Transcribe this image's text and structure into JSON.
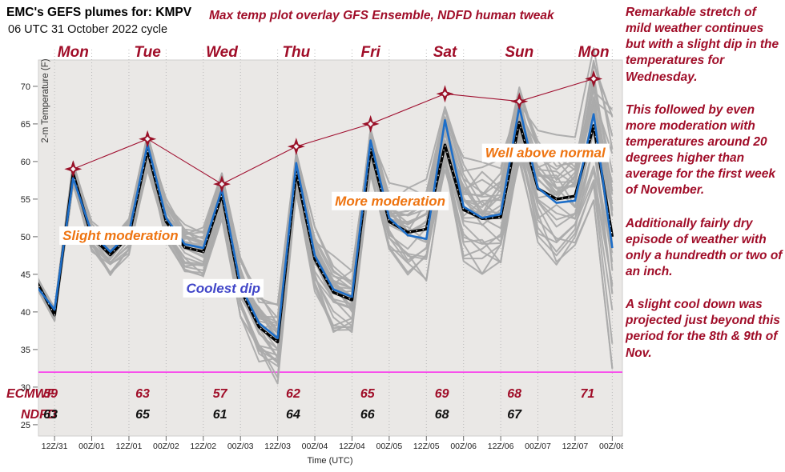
{
  "header": {
    "title": "EMC's GEFS plumes for: KMPV",
    "subtitle": "06 UTC 31 October 2022 cycle",
    "overlay_note": "Max temp plot overlay GFS Ensemble, NDFD human tweak"
  },
  "commentary": {
    "paragraphs": [
      "Remarkable stretch of mild weather continues but with a slight dip in the temperatures for Wednesday.",
      "This followed by even more moderation with temperatures around 20 degrees higher than average for the first week of November.",
      "Additionally fairly dry episode of weather with only a hundredth or two of an inch.",
      "A slight cool down was projected just beyond this period for the 8th & 9th of Nov."
    ]
  },
  "colors": {
    "accent_red": "#A00D28",
    "star_red": "#9A1128",
    "orange": "#EE7411",
    "annotation_blue": "#4146C8",
    "line_black": "#000000",
    "line_blue": "#1D6EC8",
    "ensemble_gray": "#ABABAB",
    "freezing_magenta": "#FF00EE",
    "plot_bg": "#EAE8E6"
  },
  "chart_data": {
    "type": "line",
    "title": "EMC's GEFS plumes for: KMPV",
    "xlabel": "Time (UTC)",
    "ylabel": "2-m Temperature (F)",
    "ylim": [
      23.5,
      73.5
    ],
    "yticks": [
      25,
      30,
      35,
      40,
      45,
      50,
      55,
      60,
      65,
      70
    ],
    "grid": "vertical-dotted",
    "freezing_line_f": 32,
    "x_hours": [
      0,
      6,
      12,
      18,
      24,
      30,
      36,
      42,
      48,
      54,
      60,
      66,
      72,
      78,
      84,
      90,
      96,
      102,
      108,
      114,
      120,
      126,
      132,
      138,
      144,
      150,
      156,
      162,
      168,
      174,
      180,
      186
    ],
    "x_tick_hours": [
      6,
      18,
      30,
      42,
      54,
      66,
      78,
      90,
      102,
      114,
      126,
      138,
      150,
      162,
      174,
      186
    ],
    "x_tick_labels": [
      "12Z/31",
      "00Z/01",
      "12Z/01",
      "00Z/02",
      "12Z/02",
      "00Z/03",
      "12Z/03",
      "00Z/04",
      "12Z/04",
      "00Z/05",
      "12Z/05",
      "00Z/06",
      "12Z/06",
      "00Z/07",
      "12Z/07",
      "00Z/08"
    ],
    "day_labels": [
      {
        "label": "Mon",
        "hour": 12
      },
      {
        "label": "Tue",
        "hour": 36
      },
      {
        "label": "Wed",
        "hour": 60
      },
      {
        "label": "Thu",
        "hour": 84
      },
      {
        "label": "Fri",
        "hour": 108
      },
      {
        "label": "Sat",
        "hour": 132
      },
      {
        "label": "Sun",
        "hour": 156
      },
      {
        "label": "Mon",
        "hour": 180
      }
    ],
    "series": {
      "gefs_mean": {
        "name": "GEFS ensemble mean",
        "color": "#000000",
        "values": [
          44.2,
          39.6,
          58.4,
          50,
          47.6,
          50,
          61.5,
          52,
          48.6,
          48,
          55.6,
          43,
          38,
          36,
          58.6,
          47,
          42.6,
          41.6,
          61.6,
          52,
          50.6,
          51,
          62.2,
          53.6,
          52.4,
          52.6,
          65.2,
          56.4,
          55,
          55.4,
          64.8,
          50
        ]
      },
      "ndfd": {
        "name": "NDFD human tweak",
        "color": "#1D6EC8",
        "values": [
          43.5,
          40.3,
          57.8,
          50.5,
          48,
          50.5,
          62.3,
          52.5,
          49,
          48.5,
          56.3,
          43.5,
          38.5,
          36.5,
          59.8,
          47.5,
          43,
          42,
          62.8,
          52.5,
          50.2,
          49.7,
          65.5,
          54,
          52.5,
          53,
          67.3,
          56.5,
          54.5,
          54.8,
          66.3,
          48.5
        ]
      },
      "ensemble": {
        "name": "GEFS ensemble members",
        "color": "#ABABAB",
        "count": 30,
        "spread": [
          0.6,
          0.8,
          1.2,
          1.5,
          2,
          2,
          1.8,
          2.2,
          2.5,
          2.5,
          2.2,
          3,
          3.8,
          3.8,
          2.5,
          3.5,
          3.8,
          3.8,
          2.5,
          4,
          4.5,
          4.8,
          3.5,
          5,
          5.5,
          5.5,
          3.8,
          5.5,
          6,
          6,
          8,
          15
        ]
      },
      "ecmwf": {
        "name": "ECMWF",
        "color": "#9A1128",
        "hours": [
          12,
          36,
          60,
          84,
          108,
          132,
          156,
          180
        ],
        "values": [
          59,
          63,
          57,
          62,
          65,
          69,
          68,
          71
        ]
      }
    },
    "table": {
      "column_hours": [
        4.7,
        34.4,
        59.4,
        83,
        107,
        131,
        154.4,
        178
      ],
      "rows": [
        {
          "label": "ECMWF",
          "color": "#A00D28",
          "values": [
            "59",
            "63",
            "57",
            "62",
            "65",
            "69",
            "68",
            "71"
          ]
        },
        {
          "label": "NDFD",
          "color": "#111111",
          "values": [
            "63",
            "65",
            "61",
            "64",
            "66",
            "68",
            "67",
            ""
          ]
        }
      ]
    },
    "annotations": [
      {
        "text": "Slight moderation",
        "color": "#EE7411",
        "x_hour": 8.6,
        "temp_f": 50.2
      },
      {
        "text": "Coolest dip",
        "color": "#4146C8",
        "x_hour": 48.5,
        "temp_f": 43.2
      },
      {
        "text": "More moderation",
        "color": "#EE7411",
        "x_hour": 96.5,
        "temp_f": 54.8
      },
      {
        "text": "Well above normal",
        "color": "#EE7411",
        "x_hour": 145,
        "temp_f": 61.2
      }
    ]
  }
}
